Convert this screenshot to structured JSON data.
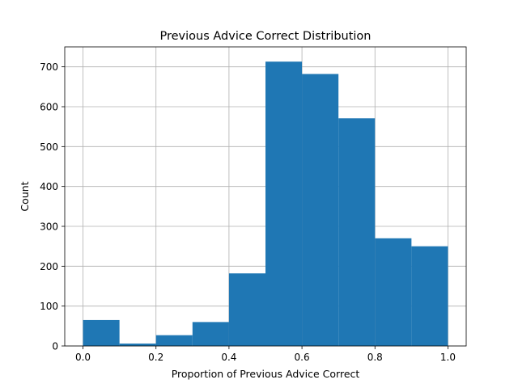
{
  "chart_data": {
    "type": "histogram",
    "title": "Previous Advice Correct Distribution",
    "xlabel": "Proportion of Previous Advice Correct",
    "ylabel": "Count",
    "xlim": [
      -0.05,
      1.05
    ],
    "ylim": [
      0,
      750
    ],
    "xticks": [
      0.0,
      0.2,
      0.4,
      0.6,
      0.8,
      1.0
    ],
    "xtick_labels": [
      "0.0",
      "0.2",
      "0.4",
      "0.6",
      "0.8",
      "1.0"
    ],
    "yticks": [
      0,
      100,
      200,
      300,
      400,
      500,
      600,
      700
    ],
    "ytick_labels": [
      "0",
      "100",
      "200",
      "300",
      "400",
      "500",
      "600",
      "700"
    ],
    "bin_edges": [
      0.0,
      0.1,
      0.2,
      0.3,
      0.4,
      0.5,
      0.6,
      0.7,
      0.8,
      0.9,
      1.0
    ],
    "values": [
      65,
      6,
      27,
      60,
      182,
      713,
      682,
      571,
      270,
      250
    ],
    "bar_color": "#1f77b4",
    "grid": true
  }
}
